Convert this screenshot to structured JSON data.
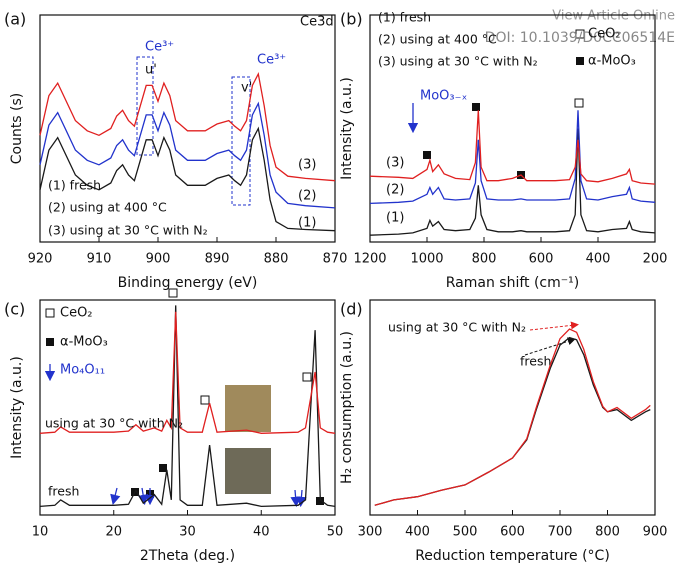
{
  "overlay": {
    "link": "View Article Online",
    "doi": "DOI: 10.1039/D0CC06514E"
  },
  "chart_data": [
    {
      "type": "line",
      "label": "(a)",
      "xlabel": "Binding energy (eV)",
      "ylabel": "Counts (s)",
      "annotations": [
        "Ce3d",
        "Ce³⁺",
        "u'",
        "Ce³⁺",
        "v'",
        "(3)",
        "(2)",
        "(1)"
      ],
      "xlim": [
        920,
        870
      ],
      "xticks": [
        920,
        910,
        900,
        890,
        880,
        870
      ],
      "ylim": [
        0,
        100
      ],
      "x": [
        920,
        918.5,
        917,
        916,
        914,
        912,
        910,
        908,
        907,
        906,
        905,
        904,
        903,
        902,
        901,
        900,
        899,
        898,
        897,
        895,
        892,
        890,
        888,
        887,
        886,
        885,
        884,
        883,
        882,
        881,
        880,
        878,
        875,
        870
      ],
      "series": [
        {
          "name": "(1) fresh",
          "color": "#1a1a1a",
          "values": [
            23,
            40.5,
            46,
            40.5,
            29.5,
            25,
            23,
            26,
            31.5,
            34,
            29.5,
            27,
            36,
            45,
            45,
            38,
            46,
            40.5,
            29.5,
            25,
            25,
            28,
            29.5,
            27,
            25,
            29.5,
            45,
            50,
            36,
            18.5,
            9,
            6,
            5.5,
            5
          ]
        },
        {
          "name": "(2) using at 400 °C",
          "color": "#2233cc",
          "values": [
            34,
            51.5,
            57,
            51.5,
            40.5,
            36,
            34,
            37,
            42.5,
            45,
            40.5,
            38,
            47,
            56,
            56,
            49,
            57,
            51.5,
            40.5,
            36,
            36,
            39,
            40.5,
            38,
            36,
            40.5,
            56,
            61,
            47,
            29.5,
            22,
            17,
            16,
            15
          ]
        },
        {
          "name": "(3) using at 30 °C with N₂",
          "color": "#e02020",
          "values": [
            47,
            64.5,
            70,
            64.5,
            53.5,
            49,
            47,
            50,
            55.5,
            58,
            53.5,
            51,
            60,
            69,
            69,
            62,
            70,
            64.5,
            53.5,
            49,
            49,
            52,
            53.5,
            51,
            49,
            53.5,
            69,
            74,
            60,
            42.5,
            33,
            29,
            28,
            27
          ]
        }
      ]
    },
    {
      "type": "line",
      "label": "(b)",
      "xlabel": "Raman shift (cm⁻¹)",
      "ylabel": "Intensity (a.u.)",
      "annotations": [
        "CeO₂",
        "α-MoO₃",
        "MoO₃₋ₓ",
        "(3)",
        "(2)",
        "(1)"
      ],
      "xlim": [
        1200,
        200
      ],
      "xticks": [
        1200,
        1000,
        800,
        600,
        400,
        200
      ],
      "ylim": [
        0,
        100
      ],
      "x": [
        1200,
        1100,
        1050,
        1000,
        990,
        980,
        960,
        940,
        900,
        850,
        830,
        820,
        810,
        790,
        750,
        700,
        670,
        650,
        600,
        550,
        500,
        480,
        470,
        460,
        440,
        400,
        350,
        300,
        290,
        280,
        250,
        200
      ],
      "series": [
        {
          "name": "(1) fresh",
          "color": "#1a1a1a",
          "values": [
            3,
            3.5,
            4,
            6,
            9.5,
            7,
            9,
            5.5,
            5,
            5.5,
            10.5,
            25,
            12,
            5.5,
            4.5,
            4.5,
            5,
            4.5,
            4.5,
            4.5,
            5,
            12,
            50,
            12,
            5,
            4.5,
            5.5,
            6,
            9,
            5.5,
            4.5,
            4
          ]
        },
        {
          "name": "(2) using at 400 °C",
          "color": "#2233cc",
          "values": [
            17,
            17.5,
            18,
            21,
            24,
            21,
            24,
            19,
            18.5,
            19,
            26,
            45,
            27,
            19,
            18.5,
            18.5,
            19,
            18.5,
            18.5,
            18.5,
            19,
            28,
            58,
            27,
            19,
            18.5,
            20,
            21,
            24,
            19,
            18,
            17.5
          ]
        },
        {
          "name": "(3) using at 30 °C with N₂",
          "color": "#e02020",
          "values": [
            29,
            28.5,
            28,
            32,
            36,
            31,
            34,
            30,
            28,
            27.5,
            35,
            58,
            33,
            27,
            27,
            28,
            29.5,
            27,
            27,
            27,
            27.5,
            33,
            45,
            30,
            27,
            26.5,
            28,
            30,
            32,
            27,
            26,
            25.5
          ]
        }
      ]
    },
    {
      "type": "line",
      "label": "(c)",
      "xlabel": "2Theta (deg.)",
      "ylabel": "Intensity (a.u.)",
      "annotations": [
        "CeO₂",
        "α-MoO₃",
        "Mo₄O₁₁"
      ],
      "xlim": [
        10,
        50
      ],
      "xticks": [
        10,
        20,
        30,
        40,
        50
      ],
      "ylim": [
        0,
        100
      ],
      "x": [
        10,
        12,
        12.8,
        14,
        20,
        22,
        23,
        24,
        25.5,
        26.5,
        27.2,
        27.8,
        28.4,
        29,
        30,
        32,
        33,
        34,
        38,
        40,
        45,
        46,
        47.3,
        48,
        49,
        50
      ],
      "series": [
        {
          "name": "fresh",
          "color": "#1a1a1a",
          "values": [
            4,
            4.5,
            7,
            4.5,
            4.5,
            5,
            11.5,
            5.5,
            9.5,
            5,
            21,
            7,
            97.5,
            7,
            4.5,
            4.5,
            32.5,
            4.5,
            5.5,
            4,
            4.5,
            7,
            86,
            7,
            4.5,
            4
          ]
        },
        {
          "name": "using at 30 °C with N₂",
          "color": "#e02020",
          "values": [
            38,
            38.5,
            41,
            38.5,
            38.5,
            39,
            42,
            39,
            40.5,
            39,
            44,
            40.5,
            94.5,
            40.5,
            38.5,
            38.5,
            52,
            38.5,
            39.5,
            38,
            38.5,
            40.5,
            66.5,
            40.5,
            38.5,
            38
          ]
        }
      ]
    },
    {
      "type": "line",
      "label": "(d)",
      "xlabel": "Reduction temperature (°C)",
      "ylabel": "H₂ consumption (a.u.)",
      "annotations": [],
      "xlim": [
        300,
        900
      ],
      "xticks": [
        300,
        400,
        500,
        600,
        700,
        800,
        900
      ],
      "ylim": [
        0,
        100
      ],
      "x": [
        310,
        350,
        400,
        450,
        500,
        550,
        600,
        630,
        650,
        680,
        700,
        720,
        735,
        750,
        770,
        790,
        800,
        820,
        850,
        880,
        890
      ],
      "series": [
        {
          "name": "fresh",
          "color": "#1a1a1a",
          "values": [
            4.5,
            7,
            8.5,
            11.5,
            14,
            20,
            26.5,
            35,
            49,
            68.5,
            79,
            82.5,
            81.5,
            74.5,
            60.5,
            50,
            48,
            49,
            44,
            48,
            49
          ]
        },
        {
          "name": "using at 30 °C with N₂",
          "color": "#e02020",
          "values": [
            4.5,
            7,
            8.5,
            11.5,
            14,
            20,
            26.5,
            35.5,
            50,
            70,
            82,
            86.5,
            85,
            77,
            62,
            50.5,
            48,
            50,
            45,
            49,
            51
          ]
        }
      ]
    }
  ]
}
